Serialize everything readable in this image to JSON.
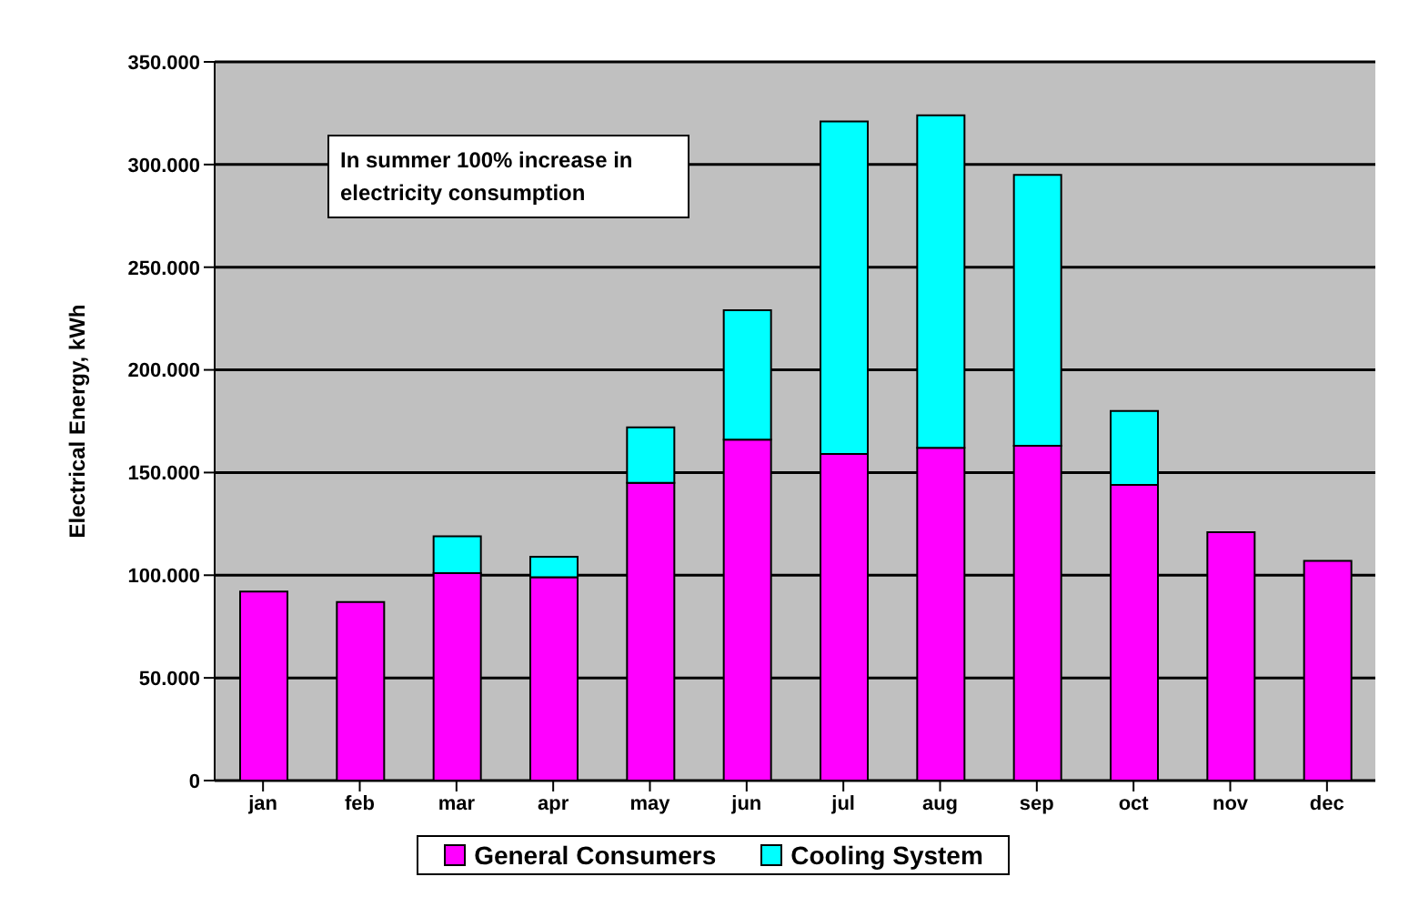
{
  "chart_data": {
    "type": "bar",
    "stacked": true,
    "ylabel": "Electrical Energy, kWh",
    "annotations": [
      "In summer 100% increase in electricity consumption"
    ],
    "categories": [
      "jan",
      "feb",
      "mar",
      "apr",
      "may",
      "jun",
      "jul",
      "aug",
      "sep",
      "oct",
      "nov",
      "dec"
    ],
    "series": [
      {
        "name": "General Consumers",
        "color": "#ff00ff",
        "values": [
          92000,
          87000,
          101000,
          99000,
          145000,
          166000,
          159000,
          162000,
          163000,
          144000,
          121000,
          107000
        ]
      },
      {
        "name": "Cooling System",
        "color": "#00ffff",
        "values": [
          null,
          null,
          18000,
          10000,
          27000,
          63000,
          162000,
          162000,
          132000,
          36000,
          null,
          null
        ]
      }
    ],
    "ylim": [
      0,
      350000
    ],
    "yticks": [
      0,
      {
        "value": 50000,
        "label": "50.000"
      },
      {
        "value": 100000,
        "label": "100.000"
      },
      {
        "value": 150000,
        "label": "150.000"
      },
      {
        "value": 200000,
        "label": "200.000"
      },
      {
        "value": 250000,
        "label": "250.000"
      },
      {
        "value": 300000,
        "label": "300.000"
      },
      {
        "value": 350000,
        "label": "350.000"
      }
    ],
    "grid": "y",
    "legend": "bottom"
  }
}
